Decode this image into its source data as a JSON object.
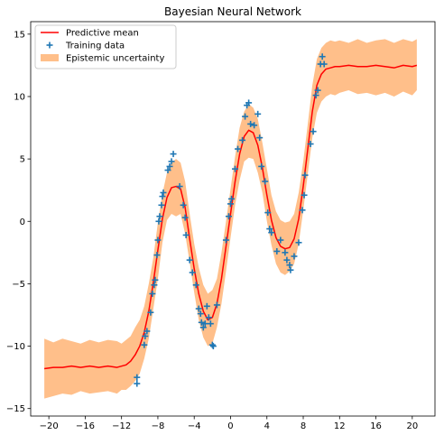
{
  "chart_data": {
    "type": "line",
    "title": "Bayesian Neural Network",
    "xlabel": "",
    "ylabel": "",
    "xlim": [
      -22.0,
      22.5
    ],
    "ylim": [
      -15.6,
      16.0
    ],
    "xticks": [
      -20,
      -16,
      -12,
      -8,
      -4,
      0,
      4,
      8,
      12,
      16,
      20
    ],
    "xtick_labels": [
      "−20",
      "−16",
      "−12",
      "−8",
      "−4",
      "0",
      "4",
      "8",
      "12",
      "16",
      "20"
    ],
    "yticks": [
      -15,
      -10,
      -5,
      0,
      5,
      10,
      15
    ],
    "ytick_labels": [
      "−15",
      "−10",
      "−5",
      "0",
      "5",
      "10",
      "15"
    ],
    "grid": false,
    "legend_position": "top-left",
    "colors": {
      "mean": "#ff0000",
      "training": "#1f77b4",
      "band": "#ffbf8a"
    },
    "series": [
      {
        "name": "Predictive mean",
        "kind": "line",
        "x": [
          -20.5,
          -19.5,
          -18.5,
          -17.5,
          -16.5,
          -15.5,
          -14.5,
          -13.5,
          -12.5,
          -12.0,
          -11.5,
          -11.0,
          -10.5,
          -10.0,
          -9.5,
          -9.0,
          -8.5,
          -8.0,
          -7.5,
          -7.0,
          -6.5,
          -6.0,
          -5.5,
          -5.0,
          -4.5,
          -4.0,
          -3.5,
          -3.0,
          -2.5,
          -2.0,
          -1.5,
          -1.0,
          -0.5,
          0.0,
          0.5,
          1.0,
          1.5,
          2.0,
          2.5,
          3.0,
          3.5,
          4.0,
          4.5,
          5.0,
          5.5,
          6.0,
          6.5,
          7.0,
          7.5,
          8.0,
          8.5,
          9.0,
          9.5,
          10.0,
          10.5,
          11.0,
          11.5,
          12.0,
          13.0,
          14.0,
          15.0,
          16.0,
          17.0,
          18.0,
          19.0,
          20.0,
          20.5
        ],
        "y": [
          -11.8,
          -11.7,
          -11.7,
          -11.6,
          -11.7,
          -11.6,
          -11.7,
          -11.6,
          -11.7,
          -11.6,
          -11.5,
          -11.2,
          -10.7,
          -10.0,
          -8.9,
          -7.2,
          -4.9,
          -2.3,
          0.2,
          1.9,
          2.7,
          2.8,
          2.6,
          1.1,
          -1.4,
          -3.8,
          -5.8,
          -7.2,
          -7.9,
          -7.7,
          -6.6,
          -4.6,
          -2.0,
          0.6,
          3.2,
          5.4,
          6.8,
          7.3,
          7.1,
          6.1,
          4.3,
          2.1,
          0.1,
          -1.3,
          -2.0,
          -2.2,
          -2.1,
          -1.4,
          0.2,
          2.8,
          5.8,
          8.8,
          10.9,
          11.8,
          12.2,
          12.3,
          12.4,
          12.4,
          12.5,
          12.4,
          12.4,
          12.5,
          12.4,
          12.3,
          12.5,
          12.4,
          12.5
        ]
      },
      {
        "name": "Training data",
        "kind": "scatter",
        "points": [
          [
            -10.3,
            -12.5
          ],
          [
            -10.3,
            -13.0
          ],
          [
            -9.5,
            -9.9
          ],
          [
            -9.4,
            -9.2
          ],
          [
            -9.2,
            -8.8
          ],
          [
            -8.8,
            -7.3
          ],
          [
            -8.6,
            -5.8
          ],
          [
            -8.4,
            -5.1
          ],
          [
            -8.3,
            -4.7
          ],
          [
            -8.1,
            -2.7
          ],
          [
            -8.0,
            -1.5
          ],
          [
            -7.9,
            0.0
          ],
          [
            -7.8,
            0.4
          ],
          [
            -7.6,
            1.3
          ],
          [
            -7.5,
            2.0
          ],
          [
            -7.4,
            2.3
          ],
          [
            -6.9,
            4.1
          ],
          [
            -6.7,
            4.4
          ],
          [
            -6.5,
            4.8
          ],
          [
            -6.3,
            5.4
          ],
          [
            -5.6,
            2.8
          ],
          [
            -5.2,
            1.3
          ],
          [
            -5.0,
            0.3
          ],
          [
            -4.9,
            -1.1
          ],
          [
            -4.5,
            -3.1
          ],
          [
            -4.2,
            -4.1
          ],
          [
            -3.8,
            -5.1
          ],
          [
            -3.5,
            -7.0
          ],
          [
            -3.3,
            -7.4
          ],
          [
            -3.2,
            -8.1
          ],
          [
            -3.0,
            -8.5
          ],
          [
            -2.8,
            -8.2
          ],
          [
            -2.6,
            -6.8
          ],
          [
            -2.4,
            -7.7
          ],
          [
            -2.2,
            -8.2
          ],
          [
            -2.0,
            -9.9
          ],
          [
            -1.9,
            -10.0
          ],
          [
            -1.5,
            -6.7
          ],
          [
            -0.5,
            -1.5
          ],
          [
            -0.2,
            0.4
          ],
          [
            0.0,
            1.4
          ],
          [
            0.1,
            1.8
          ],
          [
            0.5,
            4.2
          ],
          [
            0.8,
            5.8
          ],
          [
            1.3,
            6.5
          ],
          [
            1.6,
            8.4
          ],
          [
            1.8,
            9.3
          ],
          [
            2.0,
            9.5
          ],
          [
            2.2,
            7.8
          ],
          [
            2.6,
            7.7
          ],
          [
            3.0,
            8.6
          ],
          [
            3.2,
            6.7
          ],
          [
            3.4,
            4.4
          ],
          [
            3.8,
            3.2
          ],
          [
            4.1,
            0.7
          ],
          [
            4.3,
            -0.6
          ],
          [
            4.5,
            -0.9
          ],
          [
            5.1,
            -2.4
          ],
          [
            5.5,
            -1.5
          ],
          [
            6.0,
            -2.5
          ],
          [
            6.2,
            -3.1
          ],
          [
            6.5,
            -3.5
          ],
          [
            6.6,
            -3.9
          ],
          [
            7.0,
            -2.8
          ],
          [
            7.5,
            -1.7
          ],
          [
            7.9,
            0.9
          ],
          [
            8.1,
            2.1
          ],
          [
            8.2,
            3.7
          ],
          [
            8.8,
            6.2
          ],
          [
            9.1,
            7.2
          ],
          [
            9.4,
            10.1
          ],
          [
            9.6,
            10.5
          ],
          [
            9.9,
            12.6
          ],
          [
            10.1,
            13.2
          ],
          [
            10.3,
            12.6
          ]
        ]
      },
      {
        "name": "Epistemic uncertainty",
        "kind": "band",
        "x": [
          -20.5,
          -19.5,
          -18.5,
          -17.5,
          -16.5,
          -15.5,
          -14.5,
          -13.5,
          -12.5,
          -12.0,
          -11.5,
          -11.0,
          -10.5,
          -10.0,
          -9.5,
          -9.0,
          -8.5,
          -8.0,
          -7.5,
          -7.0,
          -6.5,
          -6.0,
          -5.5,
          -5.0,
          -4.5,
          -4.0,
          -3.5,
          -3.0,
          -2.5,
          -2.0,
          -1.5,
          -1.0,
          -0.5,
          0.0,
          0.5,
          1.0,
          1.5,
          2.0,
          2.5,
          3.0,
          3.5,
          4.0,
          4.5,
          5.0,
          5.5,
          6.0,
          6.5,
          7.0,
          7.5,
          8.0,
          8.5,
          9.0,
          9.5,
          10.0,
          10.5,
          11.0,
          11.5,
          12.0,
          13.0,
          14.0,
          15.0,
          16.0,
          17.0,
          18.0,
          19.0,
          20.0,
          20.5
        ],
        "lower": [
          -14.2,
          -14.0,
          -13.8,
          -13.9,
          -13.6,
          -13.8,
          -13.7,
          -13.6,
          -13.8,
          -13.5,
          -13.5,
          -13.2,
          -12.8,
          -12.2,
          -11.0,
          -9.4,
          -7.0,
          -4.6,
          -1.7,
          0.1,
          0.6,
          0.4,
          0.6,
          -1.0,
          -3.3,
          -5.7,
          -7.9,
          -9.3,
          -10.0,
          -9.8,
          -8.5,
          -6.6,
          -4.0,
          -1.3,
          1.3,
          3.3,
          4.8,
          5.1,
          5.0,
          3.9,
          2.3,
          0.0,
          -1.9,
          -3.4,
          -4.1,
          -4.3,
          -4.0,
          -3.4,
          -1.8,
          0.9,
          3.8,
          6.7,
          8.7,
          9.6,
          10.0,
          10.2,
          10.1,
          10.3,
          10.5,
          10.2,
          10.3,
          10.1,
          10.3,
          10.0,
          10.4,
          10.1,
          10.5
        ],
        "upper": [
          -9.4,
          -9.7,
          -9.4,
          -9.6,
          -9.8,
          -9.5,
          -9.7,
          -9.5,
          -9.6,
          -9.8,
          -9.5,
          -9.2,
          -8.5,
          -7.9,
          -6.8,
          -5.0,
          -2.9,
          -0.1,
          2.2,
          3.9,
          4.7,
          5.0,
          4.7,
          3.2,
          0.6,
          -1.8,
          -3.7,
          -5.1,
          -5.8,
          -5.5,
          -4.6,
          -2.5,
          0.0,
          2.6,
          5.2,
          7.5,
          8.8,
          9.4,
          9.1,
          8.2,
          6.3,
          4.2,
          2.1,
          0.8,
          0.1,
          -0.1,
          0.0,
          0.6,
          2.3,
          4.8,
          7.8,
          10.9,
          13.0,
          13.9,
          14.3,
          14.5,
          14.4,
          14.5,
          14.3,
          14.6,
          14.3,
          14.5,
          14.6,
          14.3,
          14.6,
          14.4,
          14.6
        ]
      }
    ]
  }
}
